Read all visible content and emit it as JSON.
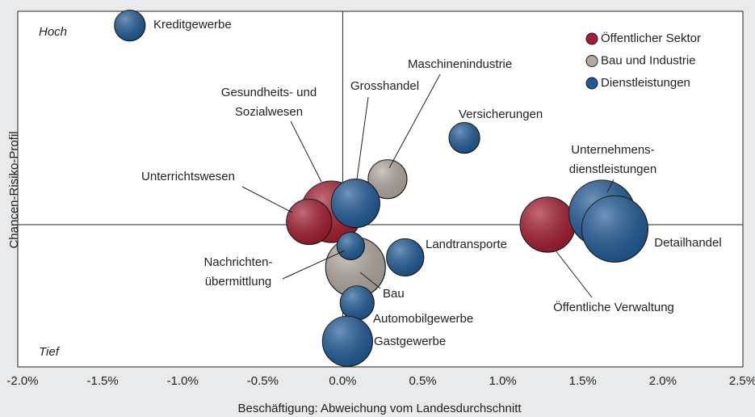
{
  "chart_data": {
    "type": "bubble",
    "xlabel": "Beschäftigung: Abweichung vom Landesdurchschnitt",
    "ylabel": "Chancen-Risiko-Profil",
    "annotations": [
      "Hoch",
      "Tief"
    ],
    "xlim": [
      -2.0,
      2.5
    ],
    "xticks": [
      {
        "value": -2.0,
        "label": "-2.0%"
      },
      {
        "value": -1.5,
        "label": "-1.5%"
      },
      {
        "value": -1.0,
        "label": "-1.0%"
      },
      {
        "value": -0.5,
        "label": "-0.5%"
      },
      {
        "value": 0.0,
        "label": "0.0%"
      },
      {
        "value": 0.5,
        "label": "0.5%"
      },
      {
        "value": 1.0,
        "label": "1.0%"
      },
      {
        "value": 1.5,
        "label": "1.5%"
      },
      {
        "value": 2.0,
        "label": "2.0%"
      },
      {
        "value": 2.5,
        "label": "2.5%"
      }
    ],
    "ylim": [
      -1.0,
      1.5
    ],
    "legend": "top-right",
    "series": [
      {
        "name": "Öffentlicher Sektor",
        "color": "#a51c30",
        "points": [
          {
            "name": [
              "Gesundheits- und",
              "Sozialwesen"
            ],
            "x": -0.07,
            "y": 0.09,
            "size": 38
          },
          {
            "name": [
              "Unterrichtswesen"
            ],
            "x": -0.21,
            "y": 0.02,
            "size": 28
          },
          {
            "name": [
              "Öffentliche Verwaltung"
            ],
            "x": 1.28,
            "y": 0.0,
            "size": 34
          }
        ]
      },
      {
        "name": "Bau und Industrie",
        "color": "#b3aaa2",
        "points": [
          {
            "name": [
              "Maschinenindustrie"
            ],
            "x": 0.28,
            "y": 0.32,
            "size": 24
          },
          {
            "name": [
              "Bau"
            ],
            "x": 0.08,
            "y": -0.3,
            "size": 37
          }
        ]
      },
      {
        "name": "Dienstleistungen",
        "color": "#1f5b98",
        "points": [
          {
            "name": [
              "Kreditgewerbe"
            ],
            "x": -1.33,
            "y": 1.4,
            "size": 19
          },
          {
            "name": [
              "Versicherungen"
            ],
            "x": 0.76,
            "y": 0.61,
            "size": 19
          },
          {
            "name": [
              "Grosshandel"
            ],
            "x": 0.08,
            "y": 0.15,
            "size": 30
          },
          {
            "name": [
              "Nachrichten-",
              "übermittlung"
            ],
            "x": 0.05,
            "y": -0.15,
            "size": 17
          },
          {
            "name": [
              "Landtransporte"
            ],
            "x": 0.39,
            "y": -0.23,
            "size": 23
          },
          {
            "name": [
              "Automobilgewerbe"
            ],
            "x": 0.09,
            "y": -0.55,
            "size": 21
          },
          {
            "name": [
              "Gastgewerbe"
            ],
            "x": 0.03,
            "y": -0.82,
            "size": 31
          },
          {
            "name": [
              "Unternehmens-",
              "dienstleistungen"
            ],
            "x": 1.62,
            "y": 0.08,
            "size": 41
          },
          {
            "name": [
              "Detailhandel"
            ],
            "x": 1.7,
            "y": -0.03,
            "size": 41
          }
        ]
      }
    ]
  }
}
